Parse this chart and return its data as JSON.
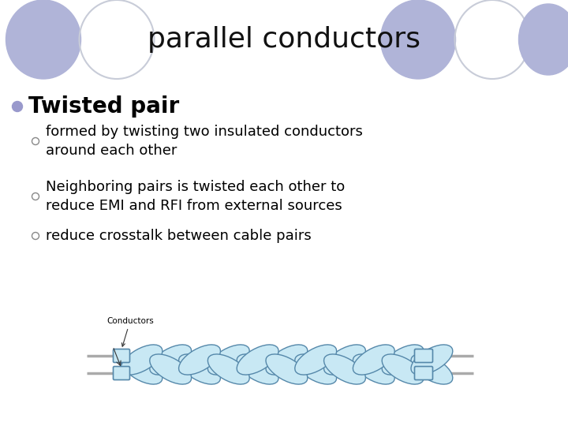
{
  "title": "parallel conductors",
  "title_fontsize": 26,
  "background_color": "#ffffff",
  "circle_filled_color": "#b0b4d8",
  "circle_outline_color": "#c8ccd8",
  "bullet_color": "#9999cc",
  "bullet_main": "Twisted pair",
  "bullet_main_fontsize": 20,
  "sub_bullets": [
    "formed by twisting two insulated conductors\naround each other",
    "Neighboring pairs is twisted each other to\nreduce EMI and RFI from external sources",
    "reduce crosstalk between cable pairs"
  ],
  "sub_bullet_fontsize": 13,
  "conductor_label": "Conductors",
  "conductor_fill": "#c8e8f4",
  "conductor_line": "#5588aa",
  "wire_color": "#aaaaaa"
}
